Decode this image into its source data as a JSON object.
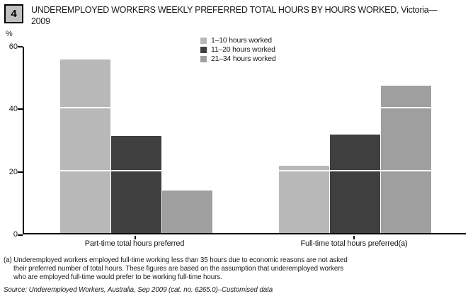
{
  "figure": {
    "number": "4",
    "title_lines": [
      "UNDEREMPLOYED WORKERS WEEKLY PREFERRED TOTAL HOURS BY HOURS WORKED, Victoria—",
      "2009"
    ]
  },
  "chart_data": {
    "type": "bar",
    "title": "UNDEREMPLOYED WORKERS WEEKLY PREFERRED TOTAL HOURS BY HOURS WORKED, Victoria—2009",
    "ylabel": "%",
    "xlabel": "",
    "ylim": [
      0,
      60
    ],
    "yticks": [
      0,
      20,
      40,
      60
    ],
    "grid": "white gridlines overlaying bars at y=20 and y=40",
    "legend_position": "top-center",
    "categories": [
      "Part-time total hours preferred",
      "Full-time total hours preferred(a)"
    ],
    "series": [
      {
        "name": "1–10 hours worked",
        "color": "#b8b8b8",
        "values": [
          55.5,
          21.5
        ]
      },
      {
        "name": "11–20 hours worked",
        "color": "#3f3f3f",
        "values": [
          31,
          31.5
        ]
      },
      {
        "name": "21–34 hours worked",
        "color": "#9f9f9f",
        "values": [
          13.5,
          47
        ]
      }
    ]
  },
  "footnote": {
    "lines": [
      "(a) Underemployed workers employed full-time working less than 35 hours due to economic reasons are not asked",
      "their preferred number of total hours. These figures are based on the assumption that underemployed workers",
      "who are employed full-time would prefer to be working full-time hours."
    ]
  },
  "source": {
    "text": "Source: Underemployed Workers, Australia, Sep 2009 (cat. no. 6265.0)–Customised data"
  },
  "colors": {
    "figure_box_bg": "#c0c0c0",
    "axis": "#000000",
    "text": "#1a1a1a"
  }
}
